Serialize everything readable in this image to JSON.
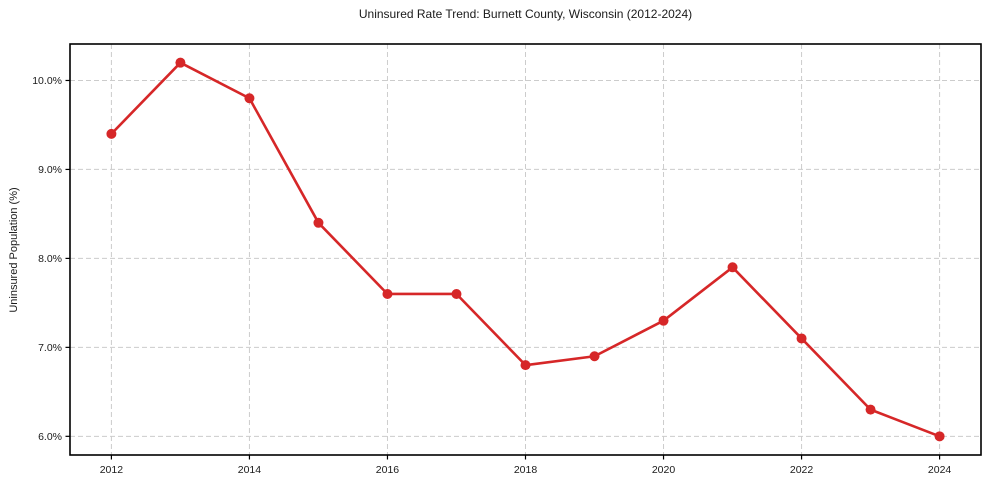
{
  "figure": {
    "background": "#ffffff"
  },
  "chart_data": {
    "type": "line",
    "title": "Uninsured Rate Trend: Burnett County, Wisconsin (2012-2024)",
    "xlabel": "",
    "ylabel": "Uninsured Population (%)",
    "x": [
      2012,
      2013,
      2014,
      2015,
      2016,
      2017,
      2018,
      2019,
      2020,
      2021,
      2022,
      2023,
      2024
    ],
    "values": [
      9.4,
      10.2,
      9.8,
      8.4,
      7.6,
      7.6,
      6.8,
      6.9,
      7.3,
      7.9,
      7.1,
      6.3,
      6.0
    ],
    "xticks": [
      2012,
      2014,
      2016,
      2018,
      2020,
      2022,
      2024
    ],
    "xtick_labels": [
      "2012",
      "2014",
      "2016",
      "2018",
      "2020",
      "2022",
      "2024"
    ],
    "yticks": [
      6.0,
      7.0,
      8.0,
      9.0,
      10.0
    ],
    "ytick_labels": [
      "6.0%",
      "7.0%",
      "8.0%",
      "9.0%",
      "10.0%"
    ],
    "xlim": [
      2011.4,
      2024.6
    ],
    "ylim": [
      5.79,
      10.41
    ],
    "grid": true,
    "grid_style": "dashed",
    "legend": false,
    "line_color": "#d62728",
    "grid_color": "#cccccc",
    "spine_color": "#000000",
    "text_color": "#1a1a1a",
    "marker": "circle",
    "marker_radius": 5,
    "line_width": 2.6
  }
}
